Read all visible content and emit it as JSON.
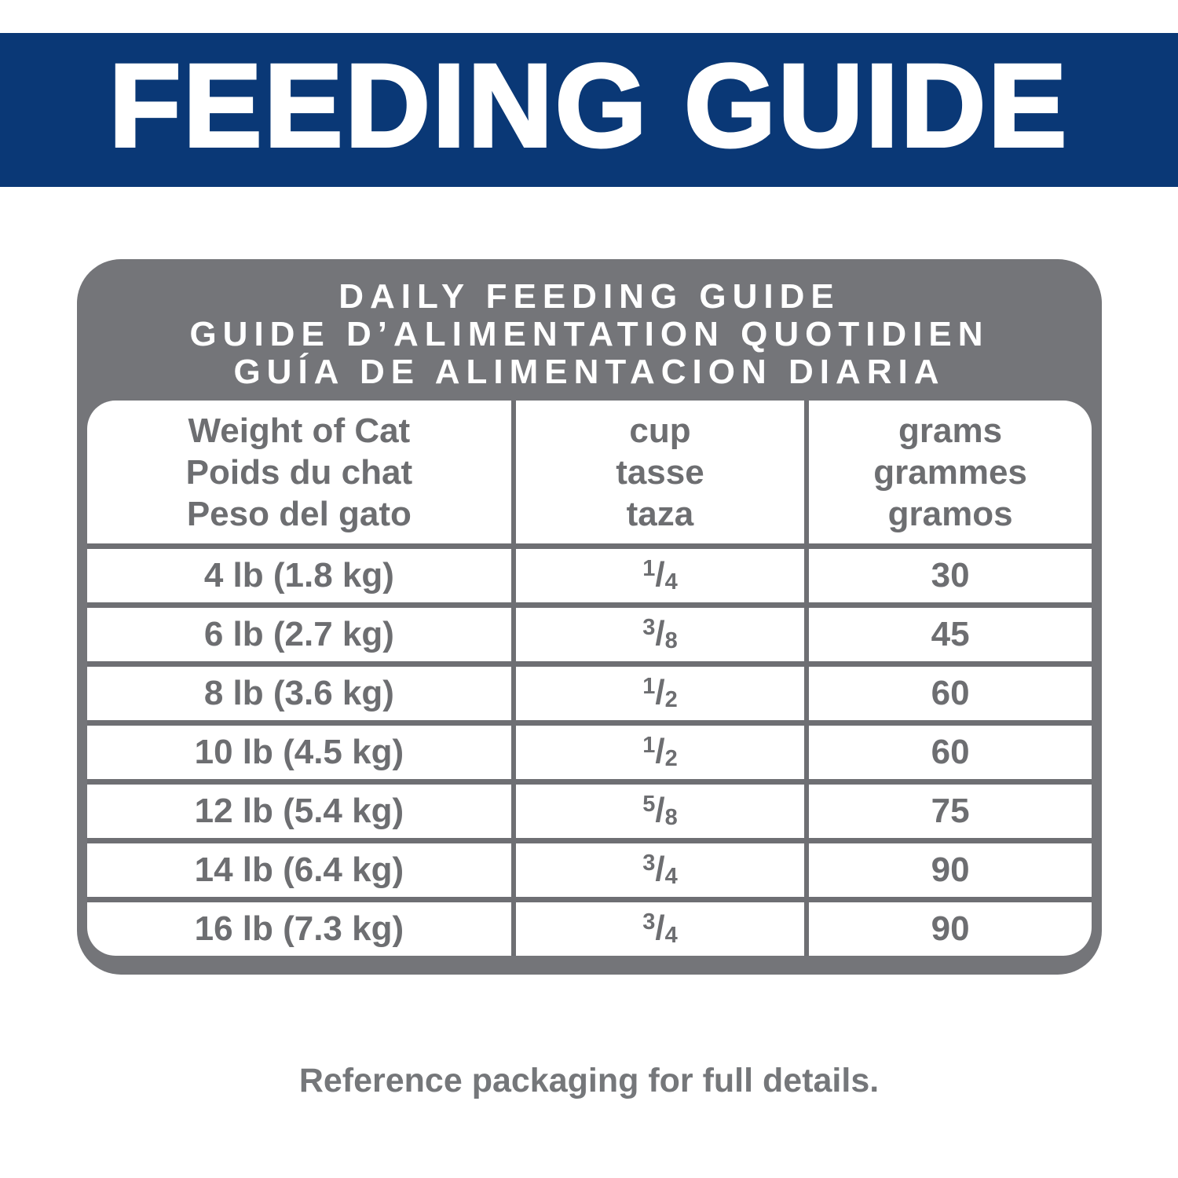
{
  "banner": {
    "title": "FEEDING GUIDE"
  },
  "colors": {
    "banner_bg": "#0a3876",
    "card_gray": "#747579",
    "line_gray": "#6e6f73",
    "cell_text_gray": "#6d6e71",
    "note_gray": "#75777a"
  },
  "card": {
    "title_lines": [
      "DAILY FEEDING GUIDE",
      "GUIDE D’ALIMENTATION QUOTIDIEN",
      "GUÍA DE ALIMENTACION DIARIA"
    ]
  },
  "table": {
    "fraction_slash": "/",
    "columns": [
      {
        "lines": [
          "Weight of Cat",
          "Poids du chat",
          "Peso del gato"
        ]
      },
      {
        "lines": [
          "cup",
          "tasse",
          "taza"
        ]
      },
      {
        "lines": [
          "grams",
          "grammes",
          "gramos"
        ]
      }
    ],
    "rows": [
      {
        "weight": "4 lb (1.8 kg)",
        "cup": "1/4",
        "cup_num": "1",
        "cup_den": "4",
        "grams": "30"
      },
      {
        "weight": "6 lb (2.7 kg)",
        "cup": "3/8",
        "cup_num": "3",
        "cup_den": "8",
        "grams": "45"
      },
      {
        "weight": "8 lb (3.6 kg)",
        "cup": "1/2",
        "cup_num": "1",
        "cup_den": "2",
        "grams": "60"
      },
      {
        "weight": "10 lb (4.5 kg)",
        "cup": "1/2",
        "cup_num": "1",
        "cup_den": "2",
        "grams": "60"
      },
      {
        "weight": "12 lb (5.4 kg)",
        "cup": "5/8",
        "cup_num": "5",
        "cup_den": "8",
        "grams": "75"
      },
      {
        "weight": "14 lb (6.4 kg)",
        "cup": "3/4",
        "cup_num": "3",
        "cup_den": "4",
        "grams": "90"
      },
      {
        "weight": "16 lb (7.3 kg)",
        "cup": "3/4",
        "cup_num": "3",
        "cup_den": "4",
        "grams": "90"
      }
    ]
  },
  "footer": {
    "note": "Reference packaging for full details."
  }
}
